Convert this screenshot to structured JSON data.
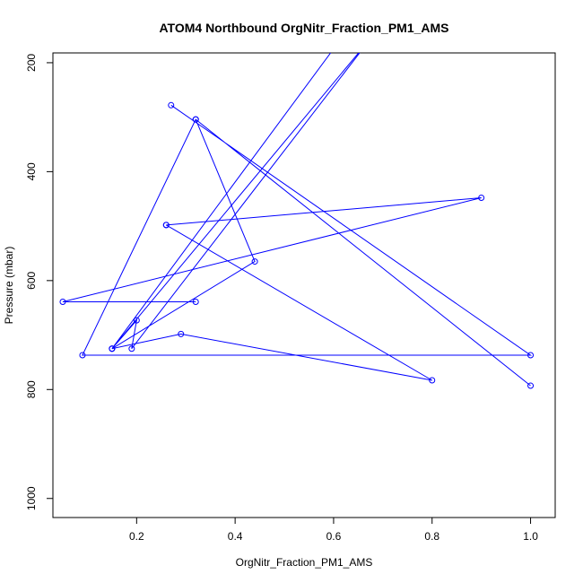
{
  "chart_data": {
    "type": "line",
    "title": "ATOM4 Northbound OrgNitr_Fraction_PM1_AMS",
    "xlabel": "OrgNitr_Fraction_PM1_AMS",
    "ylabel": "Pressure (mbar)",
    "xlim": [
      0.03,
      1.05
    ],
    "ylim": [
      1035,
      182
    ],
    "y_reversed": true,
    "x_ticks": [
      0.2,
      0.4,
      0.6,
      0.8,
      1.0
    ],
    "x_tick_labels": [
      "0.2",
      "0.4",
      "0.6",
      "0.8",
      "1.0"
    ],
    "y_ticks": [
      200,
      400,
      600,
      800,
      1000
    ],
    "y_tick_labels": [
      "200",
      "400",
      "600",
      "800",
      "1000"
    ],
    "grid": false,
    "series": [
      {
        "color": "#0000ff",
        "marker": "open-circle",
        "points": [
          {
            "x": 0.27,
            "y": 278
          },
          {
            "x": 1.0,
            "y": 737
          },
          {
            "x": 0.09,
            "y": 737
          },
          {
            "x": 0.32,
            "y": 304
          },
          {
            "x": 1.0,
            "y": 793
          },
          {
            "x": 0.32,
            "y": 304
          },
          {
            "x": 0.44,
            "y": 565
          },
          {
            "x": 0.15,
            "y": 725
          },
          {
            "x": 0.68,
            "y": 150,
            "marker": false
          },
          {
            "x": 0.19,
            "y": 725
          },
          {
            "x": 0.2,
            "y": 673
          },
          {
            "x": 0.15,
            "y": 725
          },
          {
            "x": 0.62,
            "y": 150,
            "marker": false
          }
        ]
      },
      {
        "color": "#0000ff",
        "marker": "open-circle",
        "points": [
          {
            "x": 0.26,
            "y": 498
          },
          {
            "x": 0.9,
            "y": 448
          },
          {
            "x": 0.05,
            "y": 639
          },
          {
            "x": 0.32,
            "y": 639
          }
        ]
      },
      {
        "color": "#0000ff",
        "marker": "open-circle",
        "points": [
          {
            "x": 0.26,
            "y": 498
          },
          {
            "x": 0.8,
            "y": 783
          },
          {
            "x": 0.29,
            "y": 698
          },
          {
            "x": 0.15,
            "y": 725
          }
        ]
      }
    ]
  }
}
